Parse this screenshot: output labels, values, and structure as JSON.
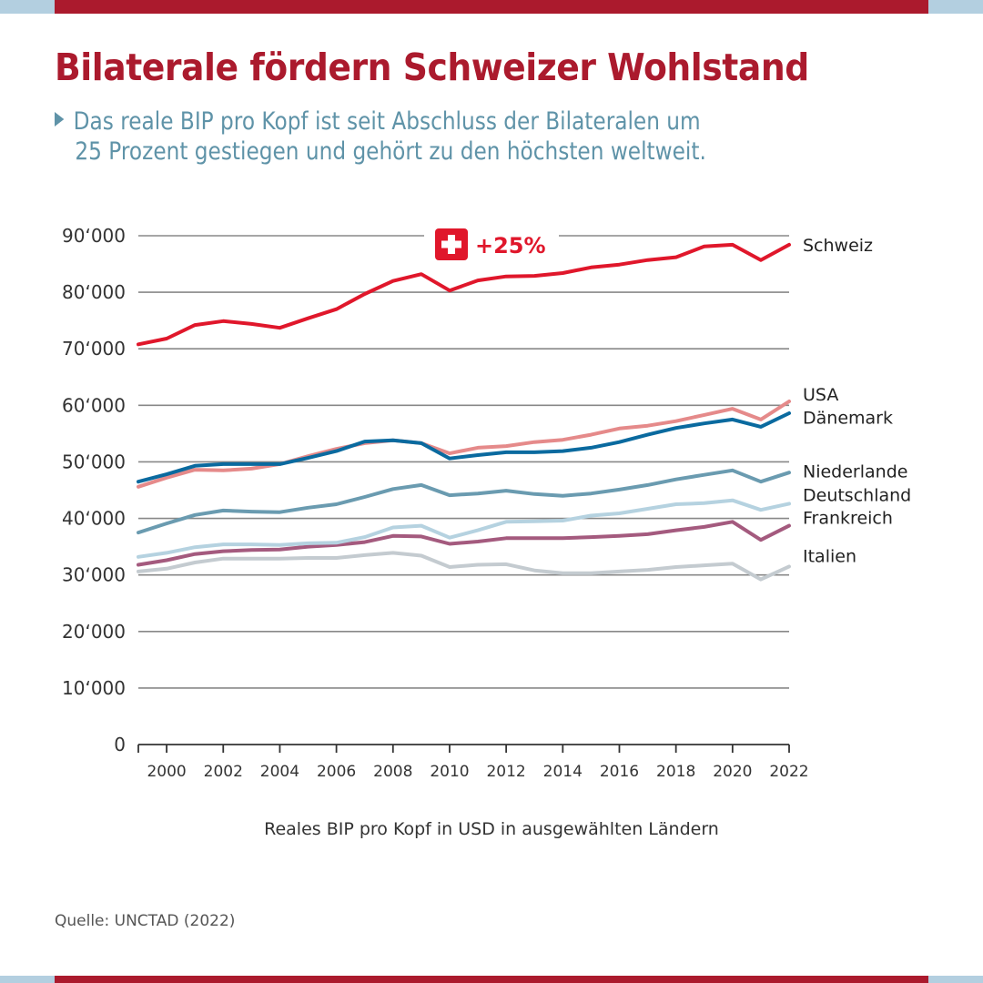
{
  "header": {
    "title": "Bilaterale fördern Schweizer Wohlstand",
    "subtitle_line1": "Das reale BIP pro Kopf ist seit Abschluss der Bilateralen um",
    "subtitle_line2": "25 Prozent gestiegen und gehört zu den höchsten weltweit."
  },
  "colors": {
    "brand_red": "#ab1a2d",
    "accent_blue": "#b3cfe0",
    "subtitle": "#5f93a8",
    "gridline": "#777777"
  },
  "chart_data": {
    "type": "line",
    "title": "",
    "xlabel": "Reales BIP pro Kopf in USD in ausgewählten Ländern",
    "ylabel": "",
    "x": [
      1999,
      2000,
      2001,
      2002,
      2003,
      2004,
      2005,
      2006,
      2007,
      2008,
      2009,
      2010,
      2011,
      2012,
      2013,
      2014,
      2015,
      2016,
      2017,
      2018,
      2019,
      2020,
      2021,
      2022
    ],
    "xlim": [
      1999,
      2022
    ],
    "ylim": [
      0,
      90000
    ],
    "x_ticks": [
      "2000",
      "2002",
      "2004",
      "2006",
      "2008",
      "2010",
      "2012",
      "2014",
      "2016",
      "2018",
      "2020",
      "2022"
    ],
    "y_ticks": [
      "0",
      "10‘000",
      "20‘000",
      "30‘000",
      "40‘000",
      "50‘000",
      "60‘000",
      "70‘000",
      "80‘000",
      "90‘000"
    ],
    "grid": true,
    "legend": "direct labels at right end of lines",
    "annotation": {
      "icon": "swiss-flag-icon",
      "text": "+25%"
    },
    "series": [
      {
        "name": "Schweiz",
        "color": "#e0172b",
        "values": [
          70800,
          71800,
          74200,
          74900,
          74400,
          73700,
          75400,
          77000,
          79700,
          82000,
          83200,
          80300,
          82100,
          82800,
          82900,
          83400,
          84400,
          84900,
          85700,
          86200,
          88100,
          88400,
          85700,
          88400
        ]
      },
      {
        "name": "USA",
        "color": "#e58a8a",
        "values": [
          45600,
          47200,
          48600,
          48500,
          48800,
          49600,
          51000,
          52300,
          53300,
          53800,
          53300,
          51500,
          52500,
          52800,
          53500,
          53900,
          54800,
          55900,
          56400,
          57200,
          58300,
          59400,
          57500,
          60700
        ]
      },
      {
        "name": "Dänemark",
        "color": "#0a6a9f",
        "values": [
          46500,
          47800,
          49300,
          49600,
          49600,
          49600,
          50700,
          51900,
          53600,
          53800,
          53300,
          50600,
          51200,
          51700,
          51700,
          51900,
          52500,
          53500,
          54800,
          56000,
          56800,
          57500,
          56200,
          58600
        ]
      },
      {
        "name": "Niederlande",
        "color": "#6a9bb0",
        "values": [
          37500,
          39100,
          40600,
          41400,
          41200,
          41100,
          41900,
          42500,
          43800,
          45200,
          45900,
          44100,
          44400,
          44900,
          44300,
          44000,
          44400,
          45100,
          45900,
          46900,
          47700,
          48500,
          46500,
          48100
        ]
      },
      {
        "name": "Deutschland",
        "color": "#b5d2e0",
        "values": [
          33200,
          33900,
          34900,
          35400,
          35400,
          35300,
          35600,
          35700,
          36700,
          38400,
          38700,
          36600,
          37900,
          39400,
          39500,
          39600,
          40500,
          40900,
          41700,
          42500,
          42700,
          43200,
          41500,
          42600
        ]
      },
      {
        "name": "Frankreich",
        "color": "#a45a7e",
        "values": [
          31800,
          32600,
          33700,
          34200,
          34400,
          34500,
          35000,
          35300,
          35800,
          36900,
          36800,
          35500,
          35900,
          36500,
          36500,
          36500,
          36700,
          36900,
          37200,
          37900,
          38500,
          39400,
          36200,
          38700
        ]
      },
      {
        "name": "Italien",
        "color": "#c4cbd0",
        "values": [
          30600,
          31100,
          32200,
          32900,
          32900,
          32900,
          33000,
          33000,
          33500,
          33900,
          33400,
          31400,
          31800,
          31900,
          30800,
          30300,
          30300,
          30600,
          30900,
          31400,
          31700,
          32000,
          29200,
          31500
        ]
      }
    ],
    "label_values": {
      "Schweiz": 88400,
      "USA": 62000,
      "Dänemark": 57900,
      "Niederlande": 48400,
      "Deutschland": 44200,
      "Frankreich": 40200,
      "Italien": 33400
    }
  },
  "footer": {
    "caption": "Reales BIP pro Kopf in USD in ausgewählten Ländern",
    "source": "Quelle: UNCTAD (2022)"
  }
}
